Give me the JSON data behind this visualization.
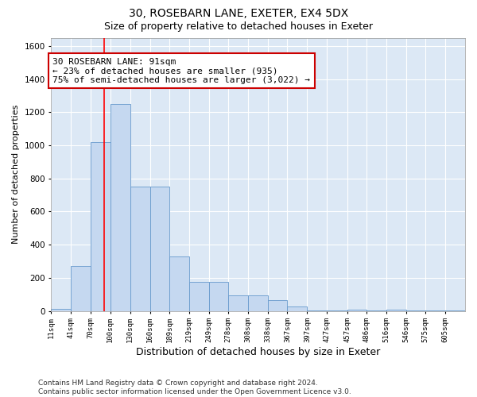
{
  "title": "30, ROSEBARN LANE, EXETER, EX4 5DX",
  "subtitle": "Size of property relative to detached houses in Exeter",
  "xlabel": "Distribution of detached houses by size in Exeter",
  "ylabel": "Number of detached properties",
  "bar_color": "#c5d8f0",
  "bar_edge_color": "#6699cc",
  "background_color": "#dce8f5",
  "grid_color": "#ffffff",
  "bin_labels": [
    "11sqm",
    "41sqm",
    "70sqm",
    "100sqm",
    "130sqm",
    "160sqm",
    "189sqm",
    "219sqm",
    "249sqm",
    "278sqm",
    "308sqm",
    "338sqm",
    "367sqm",
    "397sqm",
    "427sqm",
    "457sqm",
    "486sqm",
    "516sqm",
    "546sqm",
    "575sqm",
    "605sqm"
  ],
  "bin_edges": [
    11,
    41,
    70,
    100,
    130,
    160,
    189,
    219,
    249,
    278,
    308,
    338,
    367,
    397,
    427,
    457,
    486,
    516,
    546,
    575,
    605
  ],
  "bar_heights": [
    10,
    270,
    1020,
    1250,
    750,
    750,
    330,
    175,
    175,
    95,
    95,
    65,
    25,
    5,
    5,
    8,
    4,
    8,
    2,
    2,
    2
  ],
  "red_line_x": 91,
  "ylim": [
    0,
    1650
  ],
  "yticks": [
    0,
    200,
    400,
    600,
    800,
    1000,
    1200,
    1400,
    1600
  ],
  "annotation_text": "30 ROSEBARN LANE: 91sqm\n← 23% of detached houses are smaller (935)\n75% of semi-detached houses are larger (3,022) →",
  "annotation_box_color": "#ffffff",
  "annotation_box_edge": "#cc0000",
  "footer_text": "Contains HM Land Registry data © Crown copyright and database right 2024.\nContains public sector information licensed under the Open Government Licence v3.0.",
  "title_fontsize": 10,
  "subtitle_fontsize": 9,
  "xlabel_fontsize": 9,
  "ylabel_fontsize": 8,
  "annotation_fontsize": 8,
  "footer_fontsize": 6.5,
  "fig_bg": "#ffffff"
}
